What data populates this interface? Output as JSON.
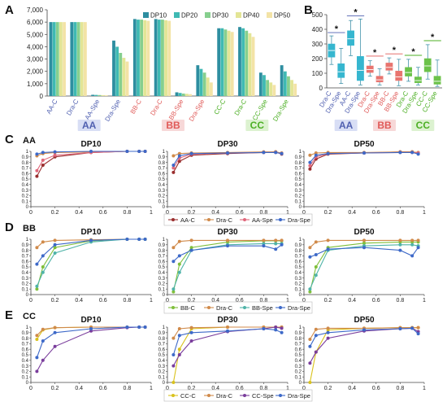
{
  "colors": {
    "AA": "#4f5fb0",
    "BB": "#e05a58",
    "CC": "#4caf24",
    "groupBgAA": "#d8def5",
    "groupBgBB": "#f7d8d8",
    "groupBgCC": "#dcf2d0",
    "dp10": "#2e8ea0",
    "dp20": "#3fb9b3",
    "dp30": "#86cf8e",
    "dp40": "#e3e596",
    "dp50": "#f3e3a6",
    "box": "#36b6cf",
    "boxEdge": "#2b86a0",
    "starLine": "#6e6e6e"
  },
  "chart_data": [
    {
      "panel": "A",
      "type": "bar",
      "categories": [
        "AA-C",
        "Dra-C",
        "AA-Spe",
        "Dra-Spe",
        "BB-C",
        "Dra-C",
        "BB-Spe",
        "Dra-Spe",
        "CC-C",
        "Dra-C",
        "CC-Spe",
        "Dra-Spe"
      ],
      "category_colors": [
        "AA",
        "AA",
        "AA",
        "AA",
        "BB",
        "BB",
        "BB",
        "BB",
        "CC",
        "CC",
        "CC",
        "CC"
      ],
      "groups": [
        "AA",
        "BB",
        "CC"
      ],
      "ylim": [
        0,
        7000
      ],
      "yticks": [
        "0",
        "1,000",
        "2,000",
        "3,000",
        "4,000",
        "5,000",
        "6,000",
        "7,000"
      ],
      "series": [
        {
          "name": "DP10",
          "values": [
            6000,
            6000,
            100,
            4500,
            6250,
            6250,
            300,
            2500,
            5500,
            5600,
            1900,
            2500
          ]
        },
        {
          "name": "DP20",
          "values": [
            6000,
            6000,
            90,
            4000,
            6200,
            6200,
            250,
            2200,
            5500,
            5500,
            1700,
            2000
          ]
        },
        {
          "name": "DP30",
          "values": [
            6000,
            6000,
            80,
            3500,
            6200,
            6200,
            200,
            1900,
            5400,
            5300,
            1300,
            1600
          ]
        },
        {
          "name": "DP40",
          "values": [
            6000,
            6000,
            70,
            3100,
            6150,
            6150,
            180,
            1500,
            5300,
            5100,
            1100,
            1300
          ]
        },
        {
          "name": "DP50",
          "values": [
            6000,
            6000,
            60,
            2800,
            6100,
            6100,
            150,
            1100,
            5200,
            4800,
            900,
            1000
          ]
        }
      ]
    },
    {
      "panel": "B",
      "type": "box",
      "categories": [
        "Dra-C",
        "Dra-Spe",
        "AA-C",
        "Dra-Spe",
        "Dra-C",
        "Dra-Spe",
        "BB-C",
        "BB-Spe",
        "Dra-C",
        "Dra-Spe",
        "CC-C",
        "CC-Spe"
      ],
      "category_colors": [
        "AA",
        "AA",
        "AA",
        "AA",
        "BB",
        "BB",
        "BB",
        "BB",
        "CC",
        "CC",
        "CC",
        "CC"
      ],
      "groups": [
        "AA",
        "BB",
        "CC"
      ],
      "ylim": [
        0,
        500
      ],
      "yticks": [
        "0",
        "100",
        "200",
        "300",
        "400",
        "500"
      ],
      "boxes": [
        {
          "min": 160,
          "q1": 210,
          "median": 255,
          "q3": 300,
          "max": 355
        },
        {
          "min": 30,
          "q1": 70,
          "median": 110,
          "q3": 165,
          "max": 270
        },
        {
          "min": 220,
          "q1": 290,
          "median": 335,
          "q3": 390,
          "max": 460
        },
        {
          "min": 20,
          "q1": 50,
          "median": 120,
          "q3": 215,
          "max": 470
        },
        {
          "min": 80,
          "q1": 105,
          "median": 125,
          "q3": 150,
          "max": 185
        },
        {
          "min": 20,
          "q1": 40,
          "median": 55,
          "q3": 80,
          "max": 130
        },
        {
          "min": 95,
          "q1": 120,
          "median": 140,
          "q3": 170,
          "max": 205
        },
        {
          "min": 15,
          "q1": 50,
          "median": 75,
          "q3": 115,
          "max": 195
        },
        {
          "min": 45,
          "q1": 80,
          "median": 105,
          "q3": 140,
          "max": 195
        },
        {
          "min": 20,
          "q1": 35,
          "median": 50,
          "q3": 75,
          "max": 140
        },
        {
          "min": 60,
          "q1": 110,
          "median": 150,
          "q3": 200,
          "max": 295
        },
        {
          "min": 10,
          "q1": 25,
          "median": 45,
          "q3": 80,
          "max": 190
        }
      ],
      "significance": [
        {
          "pair": [
            0,
            1
          ],
          "label": "*",
          "y": 355
        },
        {
          "pair": [
            2,
            3
          ],
          "label": "*",
          "y": 470
        },
        {
          "pair": [
            4,
            5
          ],
          "label": "*",
          "y": 195
        },
        {
          "pair": [
            6,
            7
          ],
          "label": "*",
          "y": 210
        },
        {
          "pair": [
            8,
            9
          ],
          "label": "*",
          "y": 200
        },
        {
          "pair": [
            10,
            11
          ],
          "label": "*",
          "y": 300
        }
      ]
    },
    {
      "panel": "C",
      "label": "AA",
      "type": "line",
      "xlim": [
        0,
        1
      ],
      "ylim": [
        0,
        1
      ],
      "xticks": [
        "0",
        "0.2",
        "0.4",
        "0.6",
        "0.8",
        "1"
      ],
      "yticks": [
        "0",
        "0.1",
        "0.2",
        "0.3",
        "0.4",
        "0.5",
        "0.6",
        "0.7",
        "0.8",
        "0.9",
        "1"
      ],
      "x": [
        0.05,
        0.1,
        0.2,
        0.5,
        0.8,
        0.9,
        0.95
      ],
      "legend": [
        "AA-C",
        "Dra-C",
        "AA-Spe",
        "Dra-Spe"
      ],
      "series_colors": [
        "#9a2e2e",
        "#d08a4a",
        "#e0677b",
        "#3d69c8"
      ],
      "subplots": [
        {
          "title": "DP10",
          "series": [
            [
              0.55,
              0.75,
              0.9,
              0.98,
              1,
              1,
              1
            ],
            [
              0.92,
              0.96,
              0.98,
              0.99,
              1,
              1,
              1
            ],
            [
              0.65,
              0.84,
              0.93,
              0.98,
              1,
              1,
              1
            ],
            [
              0.95,
              0.98,
              0.99,
              1,
              1,
              1,
              1
            ]
          ]
        },
        {
          "title": "DP30",
          "series": [
            [
              0.62,
              0.82,
              0.93,
              0.96,
              0.98,
              0.99,
              0.95
            ],
            [
              0.92,
              0.96,
              0.97,
              0.98,
              0.99,
              0.99,
              0.97
            ],
            [
              0.7,
              0.88,
              0.95,
              0.97,
              0.98,
              0.98,
              0.96
            ],
            [
              0.75,
              0.92,
              0.96,
              0.97,
              0.98,
              0.98,
              0.96
            ]
          ]
        },
        {
          "title": "DP50",
          "series": [
            [
              0.68,
              0.86,
              0.95,
              0.97,
              0.99,
              0.99,
              0.96
            ],
            [
              0.93,
              0.97,
              0.98,
              0.98,
              0.99,
              0.99,
              0.98
            ],
            [
              0.74,
              0.9,
              0.96,
              0.97,
              0.98,
              0.98,
              0.97
            ],
            [
              0.8,
              0.93,
              0.96,
              0.97,
              0.98,
              0.98,
              0.95
            ]
          ]
        }
      ]
    },
    {
      "panel": "D",
      "label": "BB",
      "type": "line",
      "xlim": [
        0,
        1
      ],
      "ylim": [
        0,
        1
      ],
      "xticks": [
        "0",
        "0.2",
        "0.4",
        "0.6",
        "0.8",
        "1"
      ],
      "yticks": [
        "0",
        "0.1",
        "0.2",
        "0.3",
        "0.4",
        "0.5",
        "0.6",
        "0.7",
        "0.8",
        "0.9",
        "1"
      ],
      "x": [
        0.05,
        0.1,
        0.2,
        0.5,
        0.8,
        0.9,
        0.95
      ],
      "legend": [
        "BB-C",
        "Dra-C",
        "BB-Spe",
        "Dra-Spe"
      ],
      "series_colors": [
        "#7fbf3a",
        "#d08a4a",
        "#4fb3a8",
        "#3d69c8"
      ],
      "subplots": [
        {
          "title": "DP10",
          "series": [
            [
              0.1,
              0.5,
              0.85,
              0.97,
              1,
              1,
              1
            ],
            [
              0.85,
              0.95,
              0.98,
              0.99,
              1,
              1,
              1
            ],
            [
              0.15,
              0.4,
              0.75,
              0.95,
              1,
              1,
              1
            ],
            [
              0.55,
              0.7,
              0.9,
              0.98,
              1,
              1,
              1
            ]
          ]
        },
        {
          "title": "DP30",
          "series": [
            [
              0.05,
              0.55,
              0.85,
              0.95,
              0.97,
              0.97,
              0.97
            ],
            [
              0.85,
              0.96,
              0.98,
              0.98,
              0.98,
              0.98,
              0.98
            ],
            [
              0.1,
              0.4,
              0.8,
              0.9,
              0.92,
              0.92,
              0.92
            ],
            [
              0.6,
              0.7,
              0.8,
              0.88,
              0.88,
              0.82,
              0.9
            ]
          ]
        },
        {
          "title": "DP50",
          "series": [
            [
              0.05,
              0.5,
              0.85,
              0.93,
              0.95,
              0.95,
              0.95
            ],
            [
              0.85,
              0.95,
              0.98,
              0.98,
              0.98,
              0.98,
              0.98
            ],
            [
              0.1,
              0.35,
              0.8,
              0.88,
              0.9,
              0.9,
              0.88
            ],
            [
              0.68,
              0.72,
              0.82,
              0.85,
              0.8,
              0.7,
              0.85
            ]
          ]
        }
      ]
    },
    {
      "panel": "E",
      "label": "CC",
      "type": "line",
      "xlim": [
        0,
        1
      ],
      "ylim": [
        0,
        1
      ],
      "xticks": [
        "0",
        "0.2",
        "0.4",
        "0.6",
        "0.8",
        "1"
      ],
      "yticks": [
        "0",
        "0.1",
        "0.2",
        "0.3",
        "0.4",
        "0.5",
        "0.6",
        "0.7",
        "0.8",
        "0.9",
        "1"
      ],
      "x": [
        0.05,
        0.1,
        0.2,
        0.5,
        0.8,
        0.9,
        0.95
      ],
      "legend": [
        "CC-C",
        "Dra-C",
        "CC-Spe",
        "Dra-Spe"
      ],
      "series_colors": [
        "#d9c21c",
        "#d08a4a",
        "#7a3d9c",
        "#3d69c8"
      ],
      "subplots": [
        {
          "title": "DP10",
          "series": [
            [
              0.78,
              0.95,
              0.99,
              1,
              1,
              1,
              1
            ],
            [
              0.85,
              0.96,
              0.99,
              1,
              1,
              1,
              1
            ],
            [
              0.2,
              0.4,
              0.65,
              0.93,
              0.99,
              1,
              1
            ],
            [
              0.45,
              0.75,
              0.9,
              0.97,
              1,
              1,
              1
            ]
          ]
        },
        {
          "title": "DP30",
          "series": [
            [
              0.0,
              0.6,
              0.97,
              1,
              1,
              1,
              1
            ],
            [
              0.8,
              0.97,
              0.99,
              1,
              1,
              1,
              1
            ],
            [
              0.3,
              0.5,
              0.75,
              0.92,
              0.97,
              1.0,
              0.98
            ],
            [
              0.5,
              0.85,
              0.9,
              0.93,
              0.97,
              0.95,
              0.9
            ]
          ]
        },
        {
          "title": "DP50",
          "series": [
            [
              0.0,
              0.55,
              0.95,
              0.98,
              0.99,
              0.99,
              0.99
            ],
            [
              0.78,
              0.96,
              0.98,
              0.98,
              0.99,
              0.99,
              0.99
            ],
            [
              0.35,
              0.55,
              0.8,
              0.93,
              0.97,
              0.98,
              0.92
            ],
            [
              0.65,
              0.85,
              0.9,
              0.95,
              0.97,
              0.98,
              0.88
            ]
          ]
        }
      ]
    }
  ]
}
